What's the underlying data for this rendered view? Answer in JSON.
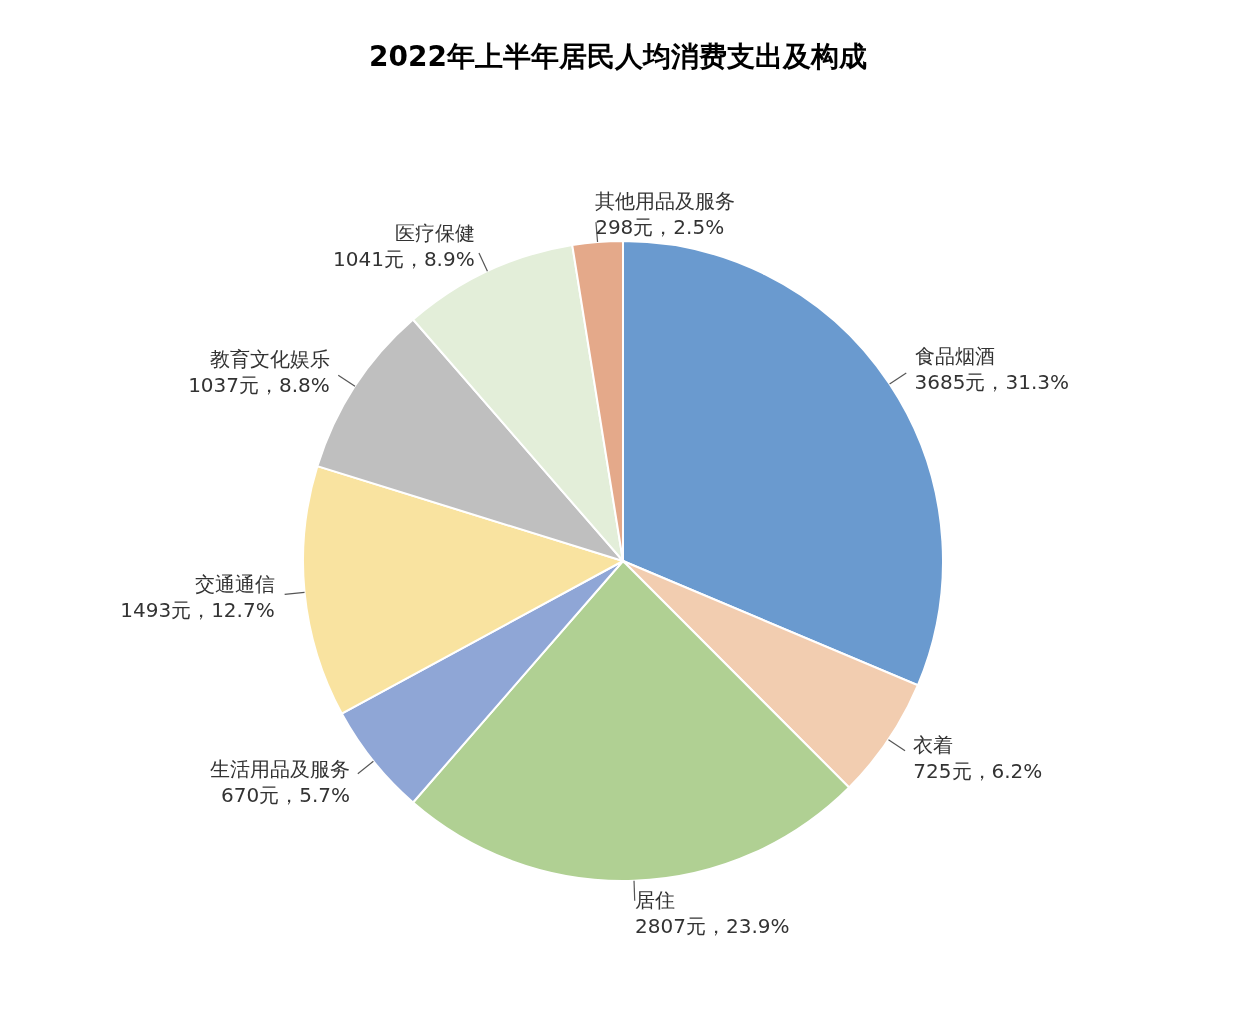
{
  "chart_data": {
    "type": "pie",
    "title": "2022年上半年居民人均消费支出及构成",
    "categories": [
      "食品烟酒",
      "衣着",
      "居住",
      "生活用品及服务",
      "交通通信",
      "教育文化娱乐",
      "医疗保健",
      "其他用品及服务"
    ],
    "values": [
      3685,
      725,
      2807,
      670,
      1493,
      1037,
      1041,
      298
    ],
    "value_labels": [
      "3685元，31.3%",
      "725元，6.2%",
      "2807元，23.9%",
      "670元，5.7%",
      "1493元，12.7%",
      "1037元，8.8%",
      "1041元，8.9%",
      "298元，2.5%"
    ],
    "colors": [
      "#6a9acf",
      "#f2cdb0",
      "#b0d093",
      "#8fa6d6",
      "#f9e3a0",
      "#bfbfbf",
      "#e3eed9",
      "#e4a98a"
    ],
    "legend": false
  }
}
